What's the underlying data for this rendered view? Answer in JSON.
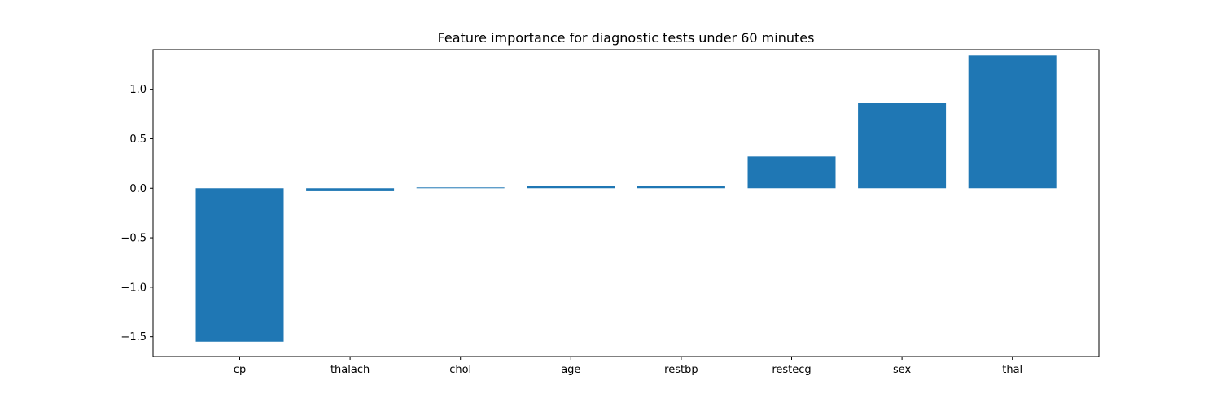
{
  "chart_data": {
    "type": "bar",
    "title": "Feature importance for diagnostic tests under 60 minutes",
    "xlabel": "",
    "ylabel": "",
    "categories": [
      "cp",
      "thalach",
      "chol",
      "age",
      "restbp",
      "restecg",
      "sex",
      "thal"
    ],
    "values": [
      -1.55,
      -0.03,
      0.008,
      0.02,
      0.02,
      0.32,
      0.86,
      1.34
    ],
    "ylim": [
      -1.7,
      1.4
    ],
    "yticks": [
      1.0,
      0.5,
      0.0,
      -0.5,
      -1.0,
      -1.5
    ],
    "ytick_labels": [
      "1.0",
      "0.5",
      "0.0",
      "−0.5",
      "−1.0",
      "−1.5"
    ],
    "bar_color": "#1f77b4",
    "grid": false,
    "legend": false
  }
}
